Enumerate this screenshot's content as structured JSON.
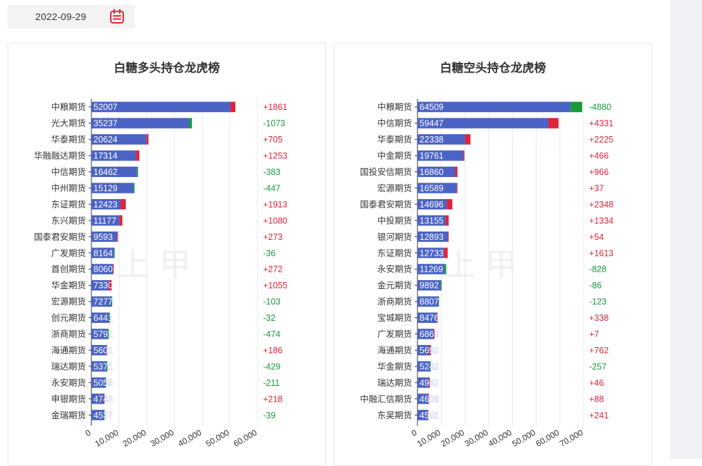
{
  "date_picker": {
    "value": "2022-09-29",
    "icon": "calendar-icon",
    "icon_color": "#e0243a"
  },
  "watermark": "上甲",
  "colors": {
    "bar": "#4b63c5",
    "increase": "#e0243a",
    "decrease": "#169b3c",
    "gain_text": "#e0243a",
    "loss_text": "#169b3c"
  },
  "chart_data": [
    {
      "type": "bar",
      "orientation": "horizontal",
      "stacked": true,
      "title": "白糖多头持仓龙虎榜",
      "categories": [
        "中粮期货",
        "光大期货",
        "华泰期货",
        "华融融达期货",
        "中信期货",
        "中州期货",
        "东证期货",
        "东兴期货",
        "国泰君安期货",
        "广发期货",
        "首创期货",
        "华金期货",
        "宏源期货",
        "创元期货",
        "浙商期货",
        "海通期货",
        "瑞达期货",
        "永安期货",
        "申银期货",
        "金瑞期货"
      ],
      "values": [
        52007,
        35237,
        20624,
        17314,
        16462,
        15129,
        12423,
        11177,
        9593,
        8164,
        8060,
        7330,
        7277,
        6441,
        5792,
        5601,
        5371,
        5055,
        4743,
        4537
      ],
      "changes": [
        "+1861",
        "-1073",
        "+705",
        "+1253",
        "-383",
        "-447",
        "+1913",
        "+1080",
        "+273",
        "-36",
        "+272",
        "+1055",
        "-103",
        "-32",
        "-474",
        "+186",
        "-429",
        "-211",
        "+218",
        "-39"
      ],
      "xlim": [
        0,
        60000
      ],
      "xticks": [
        "0",
        "10,000",
        "20,000",
        "30,000",
        "40,000",
        "50,000",
        "60,000"
      ],
      "tick_values": [
        0,
        10000,
        20000,
        30000,
        40000,
        50000,
        60000
      ]
    },
    {
      "type": "bar",
      "orientation": "horizontal",
      "stacked": true,
      "title": "白糖空头持仓龙虎榜",
      "categories": [
        "中粮期货",
        "中信期货",
        "华泰期货",
        "中金期货",
        "国投安信期货",
        "宏源期货",
        "国泰君安期货",
        "中投期货",
        "银河期货",
        "东证期货",
        "永安期货",
        "金元期货",
        "浙商期货",
        "宝城期货",
        "广发期货",
        "海通期货",
        "华金期货",
        "瑞达期货",
        "中融汇信期货",
        "东吴期货"
      ],
      "values": [
        64509,
        59447,
        22338,
        19761,
        16860,
        16589,
        14696,
        13155,
        12893,
        12733,
        11269,
        9892,
        8807,
        8476,
        6869,
        5692,
        5242,
        4962,
        4608,
        4551
      ],
      "changes": [
        "-4880",
        "+4331",
        "+2225",
        "+466",
        "+966",
        "+37",
        "+2348",
        "+1334",
        "+54",
        "+1613",
        "-828",
        "-86",
        "-123",
        "+338",
        "+7",
        "+762",
        "-257",
        "+46",
        "+88",
        "+241"
      ],
      "xlim": [
        0,
        70000
      ],
      "xticks": [
        "0",
        "10,000",
        "20,000",
        "30,000",
        "40,000",
        "50,000",
        "60,000",
        "70,000"
      ],
      "tick_values": [
        0,
        10000,
        20000,
        30000,
        40000,
        50000,
        60000,
        70000
      ]
    }
  ]
}
